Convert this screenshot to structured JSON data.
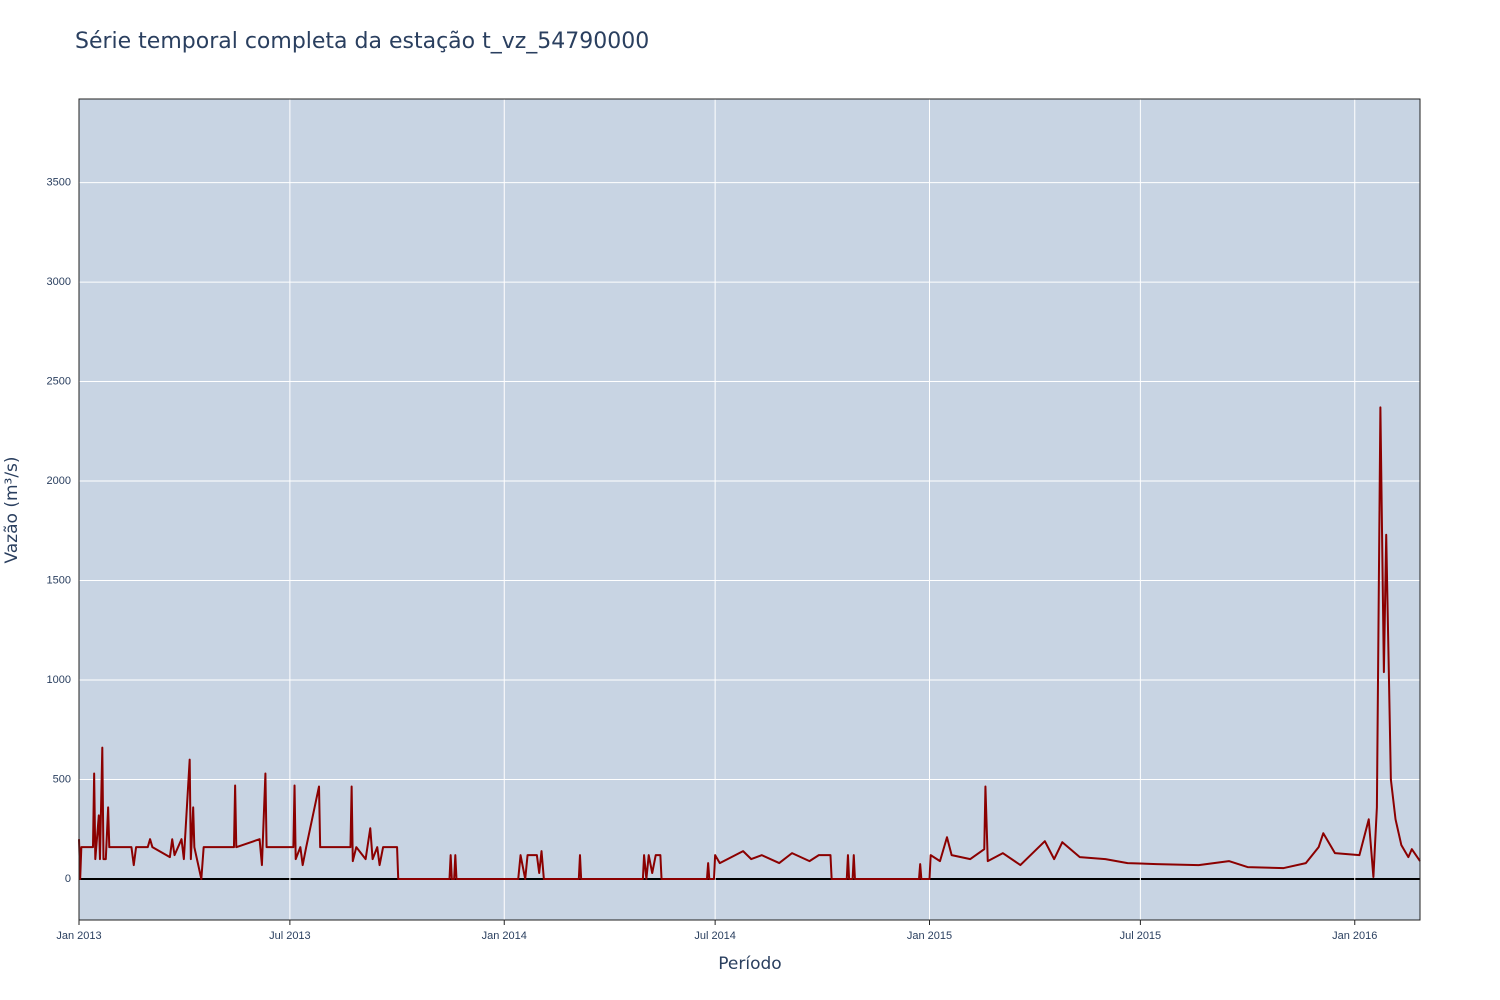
{
  "chart_data": {
    "type": "line",
    "title": "Série temporal completa da estação t_vz_54790000",
    "x_label": "Período",
    "y_label": "Vazão (m³/s)",
    "x": [
      "2013-01-01",
      "2013-01-02",
      "2013-01-03",
      "2013-01-13",
      "2013-01-14",
      "2013-01-15",
      "2013-01-18",
      "2013-01-19",
      "2013-01-21",
      "2013-01-22",
      "2013-01-24",
      "2013-01-26",
      "2013-01-27",
      "2013-02-15",
      "2013-02-17",
      "2013-02-19",
      "2013-03-01",
      "2013-03-03",
      "2013-03-05",
      "2013-03-20",
      "2013-03-22",
      "2013-03-24",
      "2013-03-30",
      "2013-04-01",
      "2013-04-06",
      "2013-04-07",
      "2013-04-09",
      "2013-04-10",
      "2013-04-16",
      "2013-04-18",
      "2013-05-14",
      "2013-05-15",
      "2013-05-16",
      "2013-06-05",
      "2013-06-07",
      "2013-06-10",
      "2013-06-11",
      "2013-07-04",
      "2013-07-05",
      "2013-07-06",
      "2013-07-10",
      "2013-07-12",
      "2013-07-15",
      "2013-07-26",
      "2013-07-27",
      "2013-08-22",
      "2013-08-23",
      "2013-08-24",
      "2013-08-27",
      "2013-09-04",
      "2013-09-08",
      "2013-09-10",
      "2013-09-14",
      "2013-09-16",
      "2013-09-19",
      "2013-10-01",
      "2013-10-02",
      "2013-11-15",
      "2013-11-16",
      "2013-11-17",
      "2013-11-19",
      "2013-11-20",
      "2013-11-21",
      "2014-01-13",
      "2014-01-15",
      "2014-01-19",
      "2014-01-21",
      "2014-01-29",
      "2014-01-31",
      "2014-02-02",
      "2014-02-04",
      "2014-03-06",
      "2014-03-07",
      "2014-03-08",
      "2014-04-30",
      "2014-05-01",
      "2014-05-03",
      "2014-05-05",
      "2014-05-08",
      "2014-05-11",
      "2014-05-15",
      "2014-05-16",
      "2014-06-24",
      "2014-06-25",
      "2014-06-26",
      "2014-06-30",
      "2014-07-01",
      "2014-07-05",
      "2014-07-15",
      "2014-07-25",
      "2014-08-01",
      "2014-08-10",
      "2014-08-25",
      "2014-09-05",
      "2014-09-20",
      "2014-09-28",
      "2014-10-08",
      "2014-10-09",
      "2014-10-22",
      "2014-10-23",
      "2014-10-24",
      "2014-10-27",
      "2014-10-28",
      "2014-10-29",
      "2014-12-23",
      "2014-12-24",
      "2014-12-25",
      "2015-01-01",
      "2015-01-02",
      "2015-01-10",
      "2015-01-16",
      "2015-01-20",
      "2015-02-05",
      "2015-02-17",
      "2015-02-18",
      "2015-02-20",
      "2015-03-05",
      "2015-03-20",
      "2015-04-10",
      "2015-04-18",
      "2015-04-25",
      "2015-05-10",
      "2015-06-01",
      "2015-06-20",
      "2015-07-15",
      "2015-08-20",
      "2015-09-15",
      "2015-10-01",
      "2015-11-01",
      "2015-11-20",
      "2015-12-01",
      "2015-12-05",
      "2015-12-15",
      "2016-01-05",
      "2016-01-13",
      "2016-01-17",
      "2016-01-20",
      "2016-01-23",
      "2016-01-26",
      "2016-01-28",
      "2016-02-01",
      "2016-02-05",
      "2016-02-10",
      "2016-02-16",
      "2016-02-19",
      "2016-02-26"
    ],
    "series": [
      {
        "color": "#8b0000",
        "values": [
          200,
          0,
          160,
          160,
          530,
          100,
          320,
          100,
          660,
          100,
          100,
          360,
          160,
          160,
          70,
          160,
          160,
          200,
          160,
          110,
          200,
          120,
          200,
          100,
          600,
          100,
          360,
          160,
          0,
          160,
          160,
          470,
          160,
          200,
          70,
          530,
          160,
          160,
          470,
          100,
          160,
          70,
          160,
          465,
          160,
          160,
          465,
          90,
          160,
          100,
          255,
          100,
          160,
          70,
          160,
          160,
          0,
          0,
          120,
          0,
          0,
          120,
          0,
          0,
          120,
          0,
          120,
          120,
          30,
          140,
          0,
          0,
          120,
          0,
          0,
          120,
          0,
          120,
          30,
          120,
          120,
          0,
          0,
          80,
          0,
          0,
          120,
          80,
          110,
          140,
          100,
          120,
          80,
          130,
          90,
          120,
          120,
          0,
          0,
          120,
          0,
          0,
          120,
          0,
          0,
          75,
          0,
          0,
          120,
          90,
          210,
          120,
          100,
          150,
          465,
          90,
          130,
          70,
          190,
          100,
          185,
          110,
          100,
          80,
          75,
          70,
          90,
          60,
          55,
          80,
          160,
          230,
          130,
          120,
          300,
          10,
          360,
          2370,
          1040,
          1730,
          500,
          300,
          170,
          110,
          150,
          90
        ]
      }
    ],
    "xlim": [
      "2013-01-01",
      "2016-02-26"
    ],
    "xticks": [
      {
        "value": "2013-01-01",
        "label": "Jan 2013"
      },
      {
        "value": "2013-07-01",
        "label": "Jul 2013"
      },
      {
        "value": "2014-01-01",
        "label": "Jan 2014"
      },
      {
        "value": "2014-07-01",
        "label": "Jul 2014"
      },
      {
        "value": "2015-01-01",
        "label": "Jan 2015"
      },
      {
        "value": "2015-07-01",
        "label": "Jul 2015"
      },
      {
        "value": "2016-01-01",
        "label": "Jan 2016"
      }
    ],
    "ylim": [
      -206,
      3920
    ],
    "yticks": [
      0,
      500,
      1000,
      1500,
      2000,
      2500,
      3000,
      3500
    ],
    "grid": true
  }
}
